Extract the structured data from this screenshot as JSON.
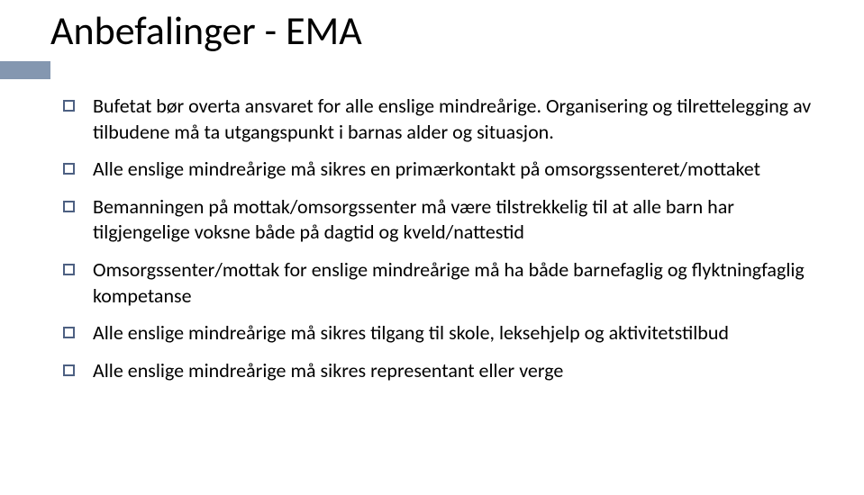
{
  "slide": {
    "title": "Anbefalinger - EMA",
    "title_fontsize": 44,
    "title_color": "#000000",
    "accent_bar_color": "#8497b0",
    "bullet_marker_border_color": "#4d6082",
    "bullet_marker_border_width": 2,
    "bullet_marker_size": 13,
    "body_fontsize": 22,
    "body_color": "#000000",
    "background_color": "#ffffff",
    "bullets": [
      "Bufetat bør overta ansvaret for alle enslige mindreårige. Organisering og tilrettelegging av tilbudene må ta utgangspunkt i barnas alder og situasjon.",
      "Alle enslige mindreårige må sikres en primærkontakt på omsorgssenteret/mottaket",
      "Bemanningen på mottak/omsorgssenter må være tilstrekkelig til at alle barn har tilgjengelige voksne både på dagtid og kveld/nattestid",
      "Omsorgssenter/mottak for enslige mindreårige må ha både barnefaglig og flyktningfaglig kompetanse",
      "Alle enslige mindreårige må sikres tilgang til skole, leksehjelp og aktivitetstilbud",
      "Alle enslige mindreårige må sikres representant eller verge"
    ]
  }
}
